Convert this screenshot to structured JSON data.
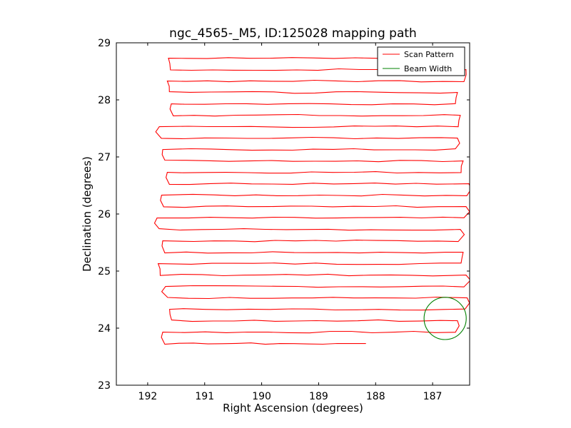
{
  "chart_data": {
    "type": "line",
    "title": "ngc_4565-_M5, ID:125028 mapping path",
    "xlabel": "Right Ascension (degrees)",
    "ylabel": "Declination (degrees)",
    "xlim": [
      192.55,
      186.35
    ],
    "ylim": [
      23,
      29
    ],
    "x_reversed": true,
    "xticks": [
      192,
      191,
      190,
      189,
      188,
      187
    ],
    "yticks": [
      23,
      24,
      25,
      26,
      27,
      28,
      29
    ],
    "grid": false,
    "legend_position": "top-right",
    "legend": [
      {
        "label": "Scan Pattern",
        "color": "#ff0000"
      },
      {
        "label": "Beam Width",
        "color": "#008000"
      }
    ],
    "scan": {
      "name": "Scan Pattern",
      "color": "#ff0000",
      "start_ra": 188.17,
      "start_dec": 23.73,
      "row_count": 26,
      "row_spacing_dec": 0.2,
      "west_ra": 191.7,
      "east_ra": 186.45,
      "west_ra_variation": [
        0.0,
        -0.02,
        0.12,
        -0.05,
        0.05,
        0.13,
        -0.08,
        0.1,
        0.0,
        0.15,
        -0.1,
        0.05,
        -0.02,
        0.12,
        0.08,
        -0.05,
        0.0,
        0.1,
        -0.06,
        0.05,
        0.15,
        -0.03,
        0.08,
        0.0,
        0.1,
        0.0
      ],
      "east_ra_variation": [
        0.0,
        0.15,
        0.05,
        -0.02,
        0.12,
        0.0,
        0.18,
        0.05,
        -0.05,
        0.1,
        0.15,
        0.0,
        0.08,
        -0.05,
        0.12,
        0.05,
        0.0,
        0.15,
        0.02,
        0.1,
        -0.02,
        0.15,
        0.05,
        0.0,
        -0.02,
        0.05
      ]
    },
    "beam": {
      "name": "Beam Width",
      "color": "#008000",
      "center_ra": 186.78,
      "center_dec": 24.17,
      "radius_deg": 0.37
    }
  }
}
